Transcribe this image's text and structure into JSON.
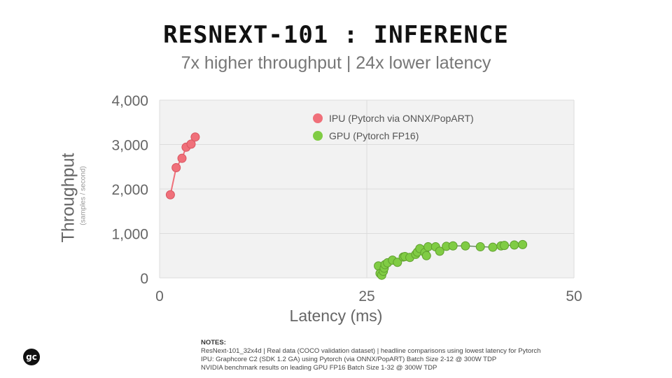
{
  "title": "RESNEXT-101 : INFERENCE",
  "subtitle": "7x higher throughput  | 24x lower latency",
  "logo": {
    "icon": "graphcore-logo-icon",
    "text": "gc"
  },
  "notes": {
    "heading": "NOTES:",
    "lines": [
      "ResNext-101_32x4d | Real data (COCO validation dataset) | headline comparisons using lowest latency for Pytorch",
      "IPU: Graphcore C2 (SDK 1.2 GA) using Pytorch (via ONNX/PopART) Batch Size 2-12 @ 300W TDP",
      "NVIDIA benchmark results on leading GPU FP16 Batch Size 1-32 @ 300W TDP"
    ]
  },
  "chart_data": {
    "type": "scatter",
    "title": "RESNEXT-101 : INFERENCE",
    "subtitle": "7x higher throughput  | 24x lower latency",
    "xlabel": "Latency (ms)",
    "ylabel": "Throughput",
    "ylabel_sub": "(samples / second)",
    "xlim": [
      0,
      50
    ],
    "ylim": [
      0,
      4000
    ],
    "xticks": [
      0,
      25,
      50
    ],
    "xtick_labels": [
      "0",
      "25",
      "50"
    ],
    "yticks": [
      0,
      1000,
      2000,
      3000,
      4000
    ],
    "ytick_labels": [
      "0",
      "1,000",
      "2,000",
      "3,000",
      "4,000"
    ],
    "grid": true,
    "legend_position": "top-center",
    "background_color": "#f2f2f2",
    "series": [
      {
        "name": "IPU (Pytorch via ONNX/PopART)",
        "color": "#f0707a",
        "connected": true,
        "x": [
          1.3,
          2.0,
          2.7,
          3.2,
          3.8,
          4.3
        ],
        "y": [
          1870,
          2480,
          2690,
          2940,
          3010,
          3170
        ]
      },
      {
        "name": "GPU (Pytorch FP16)",
        "color": "#80cc44",
        "connected": true,
        "x": [
          26.4,
          26.6,
          26.8,
          27.0,
          27.1,
          27.2,
          27.5,
          28.1,
          28.7,
          29.4,
          29.6,
          30.2,
          30.9,
          31.1,
          31.4,
          32.0,
          32.2,
          32.4,
          33.3,
          33.8,
          34.6,
          35.4,
          36.9,
          38.7,
          40.2,
          41.2,
          41.6,
          42.8,
          43.8
        ],
        "y": [
          270,
          100,
          60,
          150,
          220,
          300,
          340,
          400,
          350,
          470,
          480,
          460,
          530,
          580,
          660,
          570,
          500,
          700,
          700,
          600,
          710,
          720,
          720,
          700,
          690,
          720,
          730,
          740,
          750
        ]
      }
    ]
  }
}
